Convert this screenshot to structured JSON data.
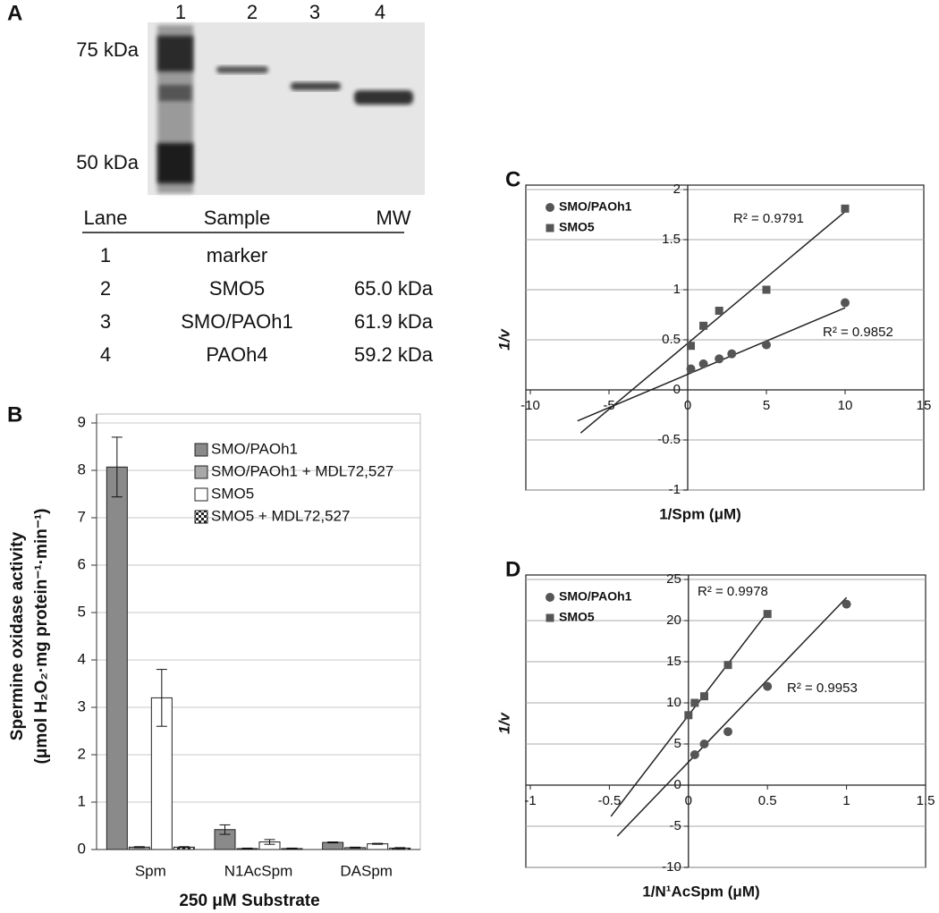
{
  "panel_a": {
    "label": "A",
    "lanes": [
      "1",
      "2",
      "3",
      "4"
    ],
    "markers": [
      "75 kDa",
      "50 kDa"
    ],
    "table": {
      "header": [
        "Lane",
        "Sample",
        "MW"
      ],
      "rows": [
        [
          "1",
          "marker"
        ],
        [
          "2",
          "SMO5",
          "65.0 kDa"
        ],
        [
          "3",
          "SMO/PAOh1",
          "61.9 kDa"
        ],
        [
          "4",
          "PAOh4",
          "59.2 kDa"
        ]
      ]
    }
  },
  "chart_data": [
    {
      "type": "bar",
      "panel_label": "B",
      "ylabel": [
        "Spermine oxidase activity",
        "(μmol H₂O₂·mg protein⁻¹·min⁻¹)"
      ],
      "xlabel": "250 μM Substrate",
      "categories": [
        "Spm",
        "N1AcSpm",
        "DASpm"
      ],
      "series": [
        {
          "name": "SMO/PAOh1",
          "color": "#8a8a8a",
          "values": [
            8.07,
            0.42,
            0.15
          ],
          "errors": [
            0.63,
            0.1,
            0.01
          ]
        },
        {
          "name": "SMO/PAOh1 + MDL72,527",
          "color": "#a8a8a8",
          "values": [
            0.05,
            0.02,
            0.04
          ],
          "errors": [
            0.01,
            0.01,
            0.01
          ]
        },
        {
          "name": "SMO5",
          "color": "#ffffff",
          "values": [
            3.2,
            0.16,
            0.12
          ],
          "errors": [
            0.6,
            0.05,
            0.01
          ]
        },
        {
          "name": "SMO5 + MDL72,527",
          "color": "#ffffff",
          "pattern": "checker",
          "values": [
            0.05,
            0.02,
            0.03
          ],
          "errors": [
            0.01,
            0.01,
            0.01
          ]
        }
      ],
      "ylim": [
        0,
        9
      ],
      "yticks": [
        0,
        1,
        2,
        3,
        4,
        5,
        6,
        7,
        8,
        9
      ],
      "grid": true,
      "legend": "upper right"
    },
    {
      "type": "scatter",
      "panel_label": "C",
      "xlabel": "1/Spm (μM)",
      "ylabel": "1/v",
      "xlim": [
        -10,
        15
      ],
      "xticks": [
        -10,
        -5,
        0,
        5,
        10,
        15
      ],
      "ylim": [
        -1,
        2
      ],
      "yticks": [
        -1,
        -0.5,
        0,
        0.5,
        1,
        1.5,
        2
      ],
      "grid": true,
      "legend": "upper left",
      "series": [
        {
          "name": "SMO/PAOh1",
          "color": "#555555",
          "marker": "circle",
          "x": [
            0.2,
            1,
            2,
            2.8,
            5,
            10
          ],
          "values": [
            0.21,
            0.26,
            0.31,
            0.36,
            0.45,
            0.87
          ],
          "trendline": {
            "x": [
              -7,
              10
            ],
            "y": [
              -0.31,
              0.82
            ]
          },
          "r2_label": "R² = 0.9852"
        },
        {
          "name": "SMO5",
          "color": "#555555",
          "marker": "square",
          "x": [
            0.2,
            1,
            2,
            5,
            10
          ],
          "values": [
            0.44,
            0.64,
            0.79,
            1.0,
            1.81
          ],
          "trendline": {
            "x": [
              -6.8,
              10
            ],
            "y": [
              -0.43,
              1.78
            ]
          },
          "r2_label": "R² = 0.9791"
        }
      ]
    },
    {
      "type": "scatter",
      "panel_label": "D",
      "xlabel": "1/N¹AcSpm (μM)",
      "ylabel": "1/v",
      "xlim": [
        -1,
        1.5
      ],
      "xticks": [
        -1,
        -0.5,
        0,
        0.5,
        1,
        1.5
      ],
      "ylim": [
        -10,
        25
      ],
      "yticks": [
        -10,
        -5,
        0,
        5,
        10,
        15,
        20,
        25
      ],
      "grid": true,
      "legend": "upper left",
      "series": [
        {
          "name": "SMO/PAOh1",
          "color": "#555555",
          "marker": "circle",
          "x": [
            0.04,
            0.1,
            0.25,
            0.5,
            1
          ],
          "values": [
            3.7,
            5.0,
            6.5,
            12,
            22
          ],
          "trendline": {
            "x": [
              -0.45,
              1
            ],
            "y": [
              -6.2,
              22.8
            ]
          },
          "r2_label": "R² = 0.9953"
        },
        {
          "name": "SMO5",
          "color": "#555555",
          "marker": "square",
          "x": [
            0,
            0.04,
            0.1,
            0.25,
            0.5
          ],
          "values": [
            8.5,
            10,
            10.8,
            14.6,
            20.8
          ],
          "trendline": {
            "x": [
              -0.49,
              0.5
            ],
            "y": [
              -3.8,
              21
            ]
          },
          "r2_label": "R² = 0.9978"
        }
      ]
    }
  ]
}
